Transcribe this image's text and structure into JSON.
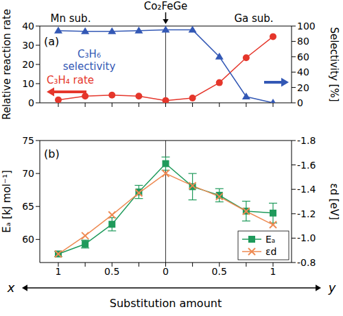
{
  "chart_data": [
    {
      "type": "line",
      "title": "(a)",
      "annotations": [
        "Co₂FeGe",
        "Mn sub.",
        "Ga sub."
      ],
      "categories": [
        "1",
        null,
        "0.5",
        null,
        "0",
        null,
        "0.5",
        null,
        "1"
      ],
      "y_label": "Relative reaction rate",
      "y2_label": "Selectivity [%]",
      "ylim": [
        0,
        40
      ],
      "yticks": [
        0,
        10,
        20,
        30,
        40
      ],
      "y2lim": [
        0,
        100
      ],
      "y2ticks": [
        0,
        20,
        40,
        60,
        80,
        100
      ],
      "tick_labels": "y",
      "series": [
        {
          "name": "C₃H₄ rate",
          "color": "#e5362b",
          "marker": "circle",
          "values": [
            1.5,
            3.5,
            4.0,
            3.5,
            1.2,
            2.5,
            10.5,
            23.5,
            34.5
          ]
        },
        {
          "name": "C₃H₆ selectivity",
          "color": "#3358b5",
          "marker": "triangle",
          "axis": "y2",
          "values": [
            94,
            93,
            93,
            94,
            95,
            95,
            60,
            8,
            0
          ]
        }
      ]
    },
    {
      "type": "line",
      "title": "(b)",
      "categories": [
        "1",
        null,
        "0.5",
        null,
        "0",
        null,
        "0.5",
        null,
        "1"
      ],
      "x_label": "Substitution amount",
      "x_end_labels": [
        "x",
        "y"
      ],
      "y_label": "Eₐ [kJ mol⁻¹]",
      "y2_label": "εd [eV]",
      "ylim": [
        56.5,
        75
      ],
      "yticks": [
        60,
        65,
        70,
        75
      ],
      "y2lim": [
        -0.8,
        -1.8
      ],
      "y2ticks": [
        -1.8,
        -1.6,
        -1.4,
        -1.2,
        {
          "value": -1,
          "label": "-1.0"
        },
        -0.8
      ],
      "legend": "lower right",
      "series": [
        {
          "name": "Eₐ",
          "color": "#1f9a5b",
          "marker": "square",
          "values": [
            57.8,
            59.3,
            62.3,
            67.2,
            71.5,
            68.0,
            66.7,
            64.3,
            64.0
          ],
          "errors": [
            0.4,
            0.6,
            1.0,
            1.0,
            1.0,
            2.0,
            1.0,
            1.5,
            1.5
          ]
        },
        {
          "name": "εd",
          "color": "#ee8a52",
          "marker": "x",
          "axis": "y2",
          "values": [
            -0.87,
            -1.02,
            -1.19,
            -1.37,
            -1.53,
            -1.43,
            -1.34,
            -1.22,
            -1.11
          ]
        }
      ]
    }
  ]
}
